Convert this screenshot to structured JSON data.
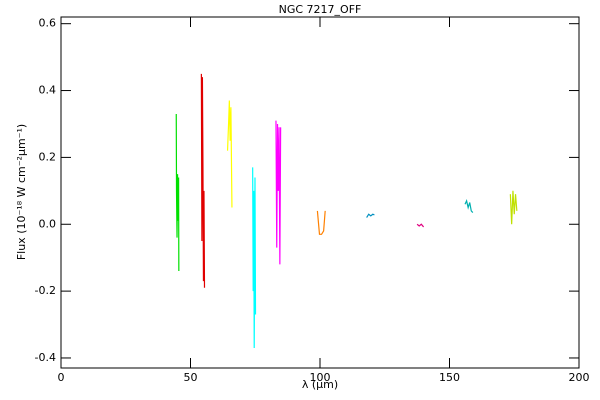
{
  "chart_data": {
    "type": "line",
    "title": "NGC 7217_OFF",
    "x_label": "λ (μm)",
    "y_label": "Flux (10⁻¹⁸ W cm⁻²μm⁻¹)",
    "xlim": [
      0,
      200
    ],
    "ylim": [
      -0.43,
      0.62
    ],
    "xticks": [
      0,
      50,
      100,
      150,
      200
    ],
    "yticks": [
      -0.4,
      -0.2,
      {
        "value": 0,
        "label": "0.0"
      },
      0.2,
      0.4,
      0.6
    ],
    "series": [
      {
        "color": "#00e000",
        "x": [
          44.5,
          44.6,
          44.8,
          45.0,
          45.2,
          45.4,
          45.5
        ],
        "values": [
          0.33,
          0.1,
          -0.04,
          0.15,
          0.01,
          0.14,
          -0.14
        ]
      },
      {
        "color": "#e00000",
        "x": [
          54.2,
          54.4,
          54.6,
          54.8,
          55.0,
          55.2,
          55.4
        ],
        "values": [
          0.45,
          -0.05,
          0.44,
          0.18,
          -0.17,
          0.1,
          -0.19
        ]
      },
      {
        "color": "#ffff00",
        "x": [
          64.3,
          64.7,
          65.0,
          65.3,
          65.6,
          66.0
        ],
        "values": [
          0.22,
          0.3,
          0.37,
          0.25,
          0.35,
          0.05
        ]
      },
      {
        "color": "#00ffff",
        "x": [
          74.0,
          74.2,
          74.4,
          74.6,
          74.9,
          75.1
        ],
        "values": [
          0.17,
          -0.2,
          0.1,
          -0.37,
          0.14,
          -0.27
        ]
      },
      {
        "color": "#ff00ff",
        "x": [
          83.0,
          83.3,
          83.6,
          83.9,
          84.2,
          84.5,
          84.8
        ],
        "values": [
          0.31,
          -0.07,
          0.3,
          0.1,
          0.29,
          -0.12,
          0.29
        ]
      },
      {
        "color": "#ff8000",
        "x": [
          99.0,
          99.8,
          100.6,
          101.4,
          102.0
        ],
        "values": [
          0.04,
          -0.03,
          -0.03,
          -0.02,
          0.04
        ]
      },
      {
        "color": "#0090c0",
        "x": [
          118.0,
          118.8,
          119.6,
          120.4,
          121.0
        ],
        "values": [
          0.02,
          0.03,
          0.025,
          0.03,
          0.028
        ]
      },
      {
        "color": "#e00080",
        "x": [
          137.5,
          138.3,
          139.1,
          140.0
        ],
        "values": [
          0.0,
          -0.005,
          0.0,
          -0.008
        ]
      },
      {
        "color": "#00b0b0",
        "x": [
          156.0,
          156.6,
          157.2,
          157.8,
          158.4,
          159.0
        ],
        "values": [
          0.06,
          0.07,
          0.05,
          0.065,
          0.04,
          0.035
        ]
      },
      {
        "color": "#c0e000",
        "x": [
          173.5,
          174.0,
          174.5,
          175.0,
          175.5,
          176.0
        ],
        "values": [
          0.09,
          0.0,
          0.1,
          0.03,
          0.09,
          0.04
        ]
      }
    ]
  }
}
